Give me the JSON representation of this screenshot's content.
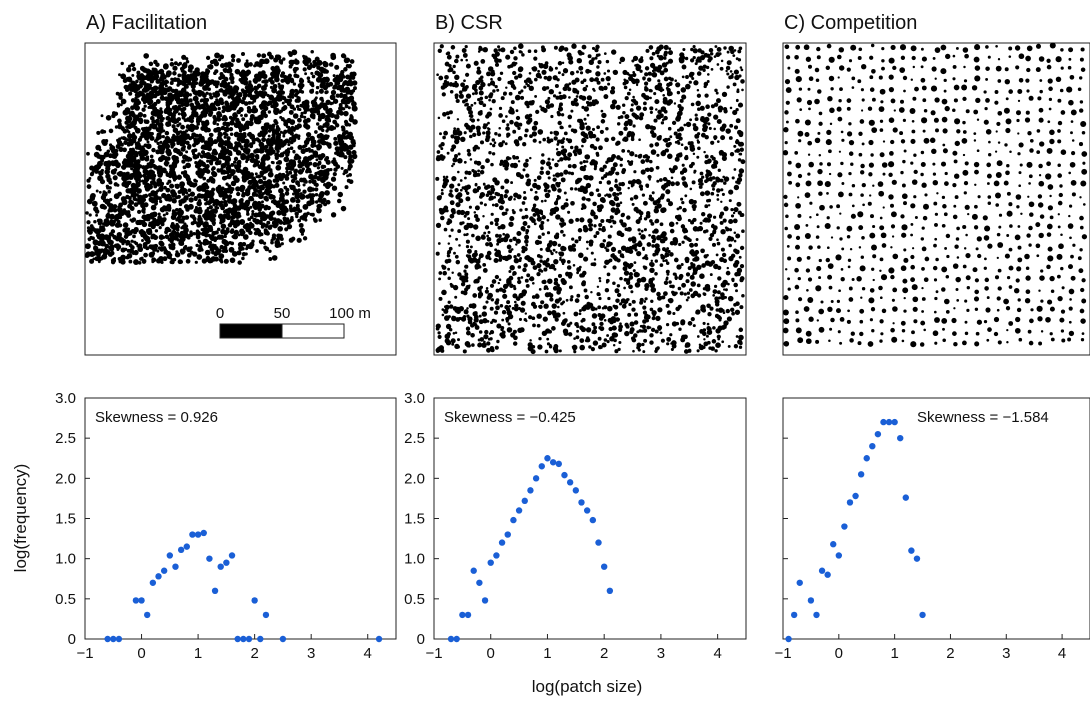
{
  "figure": {
    "ylabel": "log(frequency)",
    "xlabel": "log(patch size)"
  },
  "maps": [
    {
      "title": "A) Facilitation",
      "pattern": "clustered"
    },
    {
      "title": "B) CSR",
      "pattern": "random"
    },
    {
      "title": "C) Competition",
      "pattern": "regular"
    }
  ],
  "scalebar": {
    "labels": [
      "0",
      "50",
      "100 m"
    ],
    "colors": [
      "#000000",
      "#ffffff"
    ]
  },
  "chart_data": [
    {
      "type": "scatter",
      "title": "Skewness = 0.926",
      "xlim": [
        -1,
        4.5
      ],
      "ylim": [
        0,
        3.0
      ],
      "xticks": [
        "−1",
        "0",
        "1",
        "2",
        "3",
        "4"
      ],
      "yticks": [
        "0",
        "0.5",
        "1.0",
        "1.5",
        "2.0",
        "2.5",
        "3.0"
      ],
      "color": "#1a5fd6",
      "points": [
        [
          -0.6,
          0
        ],
        [
          -0.5,
          0
        ],
        [
          -0.4,
          0
        ],
        [
          -0.1,
          0.48
        ],
        [
          0.0,
          0.48
        ],
        [
          0.1,
          0.3
        ],
        [
          0.2,
          0.7
        ],
        [
          0.3,
          0.78
        ],
        [
          0.4,
          0.85
        ],
        [
          0.5,
          1.04
        ],
        [
          0.6,
          0.9
        ],
        [
          0.7,
          1.11
        ],
        [
          0.8,
          1.15
        ],
        [
          0.9,
          1.3
        ],
        [
          1.0,
          1.3
        ],
        [
          1.1,
          1.32
        ],
        [
          1.2,
          1.0
        ],
        [
          1.3,
          0.6
        ],
        [
          1.4,
          0.9
        ],
        [
          1.5,
          0.95
        ],
        [
          1.6,
          1.04
        ],
        [
          1.7,
          0
        ],
        [
          1.8,
          0
        ],
        [
          1.9,
          0
        ],
        [
          2.0,
          0.48
        ],
        [
          2.1,
          0
        ],
        [
          2.2,
          0.3
        ],
        [
          2.5,
          0
        ],
        [
          4.2,
          0
        ]
      ]
    },
    {
      "type": "scatter",
      "title": "Skewness = −0.425",
      "xlim": [
        -1,
        4.5
      ],
      "ylim": [
        0,
        3.0
      ],
      "xticks": [
        "−1",
        "0",
        "1",
        "2",
        "3",
        "4"
      ],
      "yticks": [
        "0",
        "0.5",
        "1.0",
        "1.5",
        "2.0",
        "2.5",
        "3.0"
      ],
      "color": "#1a5fd6",
      "points": [
        [
          -0.7,
          0
        ],
        [
          -0.6,
          0
        ],
        [
          -0.5,
          0.3
        ],
        [
          -0.4,
          0.3
        ],
        [
          -0.3,
          0.85
        ],
        [
          -0.2,
          0.7
        ],
        [
          -0.1,
          0.48
        ],
        [
          0.0,
          0.95
        ],
        [
          0.1,
          1.04
        ],
        [
          0.2,
          1.2
        ],
        [
          0.3,
          1.3
        ],
        [
          0.4,
          1.48
        ],
        [
          0.5,
          1.6
        ],
        [
          0.6,
          1.72
        ],
        [
          0.7,
          1.85
        ],
        [
          0.8,
          2.0
        ],
        [
          0.9,
          2.15
        ],
        [
          1.0,
          2.25
        ],
        [
          1.1,
          2.2
        ],
        [
          1.2,
          2.18
        ],
        [
          1.3,
          2.04
        ],
        [
          1.4,
          1.95
        ],
        [
          1.5,
          1.85
        ],
        [
          1.6,
          1.7
        ],
        [
          1.7,
          1.6
        ],
        [
          1.8,
          1.48
        ],
        [
          1.9,
          1.2
        ],
        [
          2.0,
          0.9
        ],
        [
          2.1,
          0.6
        ]
      ]
    },
    {
      "type": "scatter",
      "title": "Skewness = −1.584",
      "xlim": [
        -1,
        4.5
      ],
      "ylim": [
        0,
        3.0
      ],
      "xticks": [
        "−1",
        "0",
        "1",
        "2",
        "3",
        "4"
      ],
      "yticks": [],
      "color": "#1a5fd6",
      "points": [
        [
          -0.9,
          0
        ],
        [
          -0.8,
          0.3
        ],
        [
          -0.7,
          0.7
        ],
        [
          -0.5,
          0.48
        ],
        [
          -0.4,
          0.3
        ],
        [
          -0.3,
          0.85
        ],
        [
          -0.2,
          0.8
        ],
        [
          -0.1,
          1.18
        ],
        [
          0.0,
          1.04
        ],
        [
          0.1,
          1.4
        ],
        [
          0.2,
          1.7
        ],
        [
          0.3,
          1.78
        ],
        [
          0.4,
          2.05
        ],
        [
          0.5,
          2.25
        ],
        [
          0.6,
          2.4
        ],
        [
          0.7,
          2.55
        ],
        [
          0.8,
          2.7
        ],
        [
          0.9,
          2.7
        ],
        [
          1.0,
          2.7
        ],
        [
          1.1,
          2.5
        ],
        [
          1.2,
          1.76
        ],
        [
          1.3,
          1.1
        ],
        [
          1.4,
          1.0
        ],
        [
          1.5,
          0.3
        ]
      ]
    }
  ]
}
